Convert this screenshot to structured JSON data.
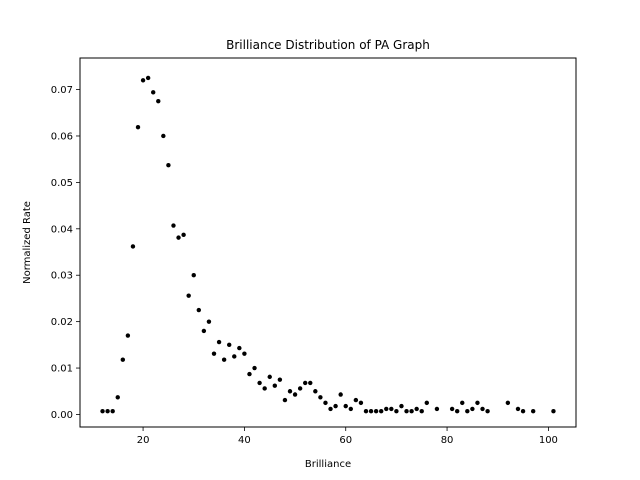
{
  "chart_data": {
    "type": "scatter",
    "title": "Brilliance Distribution of PA Graph",
    "xlabel": "Brilliance",
    "ylabel": "Normalized Rate",
    "xlim": [
      7.55,
      105.45
    ],
    "ylim": [
      -0.0027,
      0.0768
    ],
    "xticks": [
      20,
      40,
      60,
      80,
      100
    ],
    "xtick_labels": [
      "20",
      "40",
      "60",
      "80",
      "100"
    ],
    "yticks": [
      0.0,
      0.01,
      0.02,
      0.03,
      0.04,
      0.05,
      0.06,
      0.07
    ],
    "ytick_labels": [
      "0.00",
      "0.01",
      "0.02",
      "0.03",
      "0.04",
      "0.05",
      "0.06",
      "0.07"
    ],
    "grid": false,
    "marker_color": "#000000",
    "x": [
      12,
      13,
      14,
      15,
      16,
      17,
      18,
      19,
      20,
      21,
      22,
      23,
      24,
      25,
      26,
      27,
      28,
      29,
      30,
      31,
      32,
      33,
      34,
      35,
      36,
      37,
      38,
      39,
      40,
      41,
      42,
      43,
      44,
      45,
      46,
      47,
      48,
      49,
      50,
      51,
      52,
      53,
      54,
      55,
      56,
      57,
      58,
      59,
      60,
      61,
      62,
      63,
      64,
      65,
      66,
      67,
      68,
      69,
      70,
      71,
      72,
      73,
      74,
      75,
      76,
      78,
      81,
      82,
      83,
      84,
      85,
      86,
      87,
      88,
      92,
      94,
      95,
      97,
      101
    ],
    "y": [
      0.0007,
      0.0007,
      0.0007,
      0.0037,
      0.0118,
      0.017,
      0.0362,
      0.0619,
      0.072,
      0.0725,
      0.0694,
      0.0675,
      0.06,
      0.0537,
      0.0407,
      0.0381,
      0.0387,
      0.0256,
      0.03,
      0.0225,
      0.018,
      0.02,
      0.0131,
      0.0156,
      0.0118,
      0.015,
      0.0125,
      0.0143,
      0.0131,
      0.0087,
      0.01,
      0.0068,
      0.0056,
      0.0081,
      0.0062,
      0.0075,
      0.0031,
      0.005,
      0.0043,
      0.0056,
      0.0068,
      0.0068,
      0.005,
      0.0037,
      0.0025,
      0.0012,
      0.0018,
      0.0043,
      0.0018,
      0.0012,
      0.0031,
      0.0025,
      0.0007,
      0.0007,
      0.0007,
      0.0007,
      0.0012,
      0.0012,
      0.0007,
      0.0018,
      0.0007,
      0.0007,
      0.0012,
      0.0007,
      0.0025,
      0.0012,
      0.0012,
      0.0007,
      0.0025,
      0.0007,
      0.0012,
      0.0025,
      0.0012,
      0.0007,
      0.0025,
      0.0012,
      0.0007,
      0.0007,
      0.0007
    ]
  }
}
